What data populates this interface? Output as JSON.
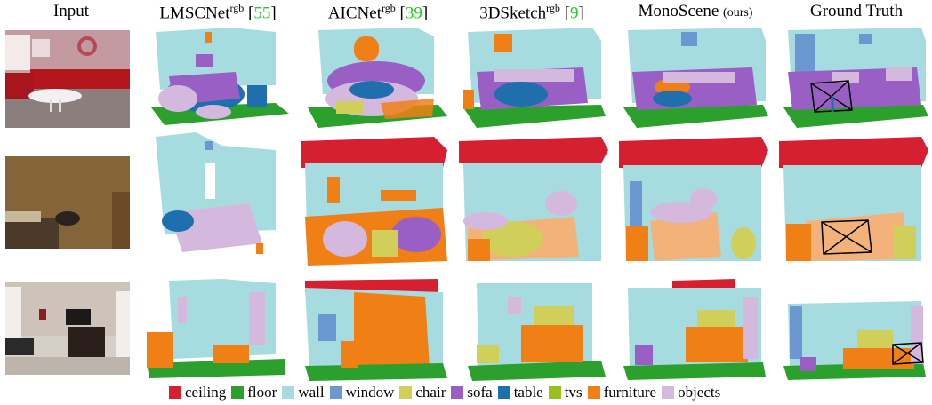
{
  "headers": {
    "input": "Input",
    "lmsc_base": "LMSCNet",
    "lmsc_sup": "rgb",
    "lmsc_ref": "55",
    "aic_base": "AICNet",
    "aic_sup": "rgb",
    "aic_ref": "39",
    "sketch_base": "3DSketch",
    "sketch_sup": "rgb",
    "sketch_ref": "9",
    "mono_base": "MonoScene",
    "mono_note": "(ours)",
    "gt": "Ground Truth"
  },
  "legend": [
    {
      "label": "ceiling",
      "color": "#d62032"
    },
    {
      "label": "floor",
      "color": "#2ca02c"
    },
    {
      "label": "wall",
      "color": "#a6dce0"
    },
    {
      "label": "window",
      "color": "#6b98d0"
    },
    {
      "label": "chair",
      "color": "#cfcf5a"
    },
    {
      "label": "sofa",
      "color": "#9a5fc4"
    },
    {
      "label": "table",
      "color": "#1f6fae"
    },
    {
      "label": "tvs",
      "color": "#9ac01e"
    },
    {
      "label": "furniture",
      "color": "#f07f16"
    },
    {
      "label": "objects",
      "color": "#d5b8de"
    }
  ]
}
